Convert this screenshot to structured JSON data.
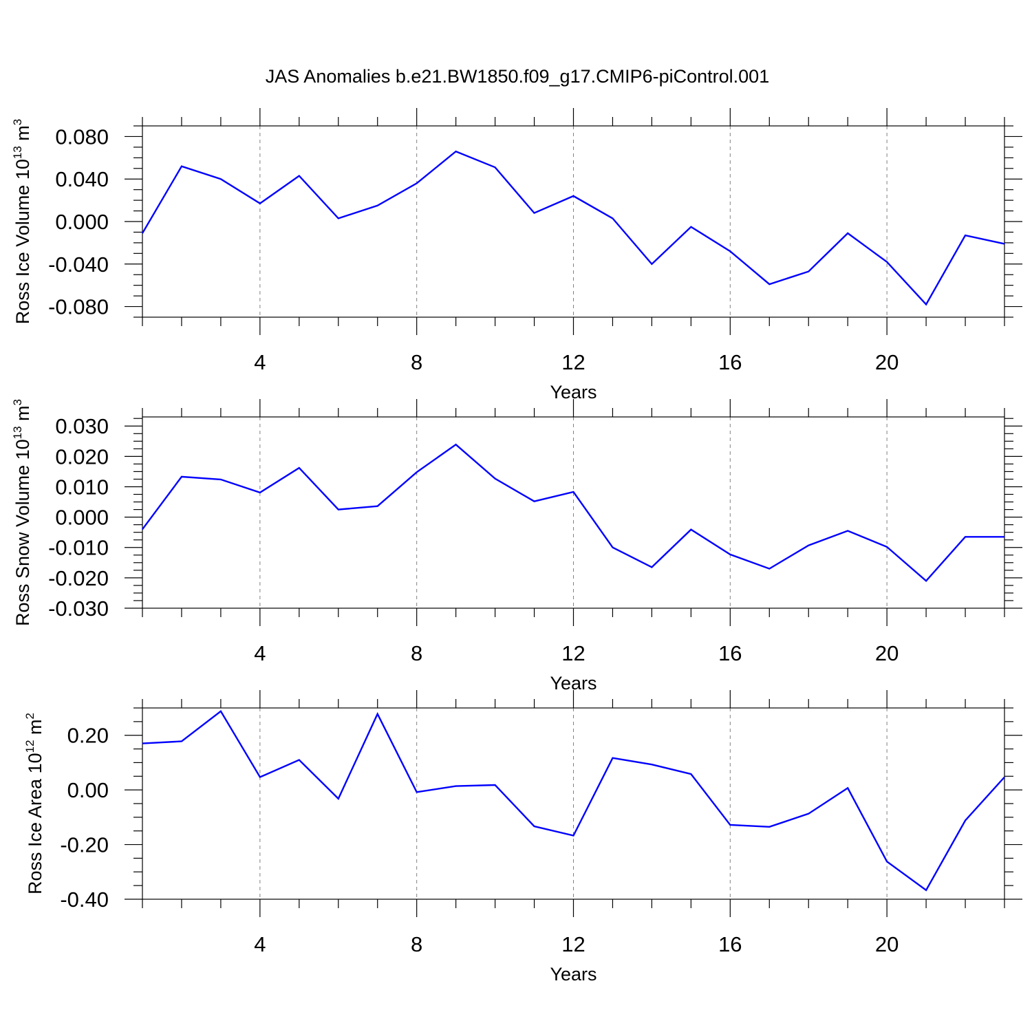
{
  "title": "JAS Anomalies b.e21.BW1850.f09_g17.CMIP6-piControl.001",
  "colors": {
    "line": "#0000ff",
    "axis": "#000000",
    "grid": "#808080",
    "background": "#ffffff"
  },
  "chart_data": [
    {
      "type": "line",
      "xlabel": "Years",
      "ylabel": {
        "text": "Ross Ice Volume 10",
        "exponent": "13",
        "unit": " m",
        "unit_exponent": "3"
      },
      "xlim": [
        1,
        23
      ],
      "ylim": [
        -0.09,
        0.09
      ],
      "x_ticks": [
        4,
        8,
        12,
        16,
        20
      ],
      "x_tick_labels": [
        "4",
        "8",
        "12",
        "16",
        "20"
      ],
      "y_ticks": [
        0.08,
        0.04,
        0.0,
        -0.04,
        -0.08
      ],
      "y_tick_labels": [
        "0.080",
        "0.040",
        "0.000",
        "-0.040",
        "-0.080"
      ],
      "y_minor_step": 0.01,
      "grid": "vertical dashed at major x ticks",
      "series": [
        {
          "name": "Ross Ice Volume",
          "x": [
            1,
            2,
            3,
            4,
            5,
            6,
            7,
            8,
            9,
            10,
            11,
            12,
            13,
            14,
            15,
            16,
            17,
            18,
            19,
            20,
            21,
            22,
            23
          ],
          "values": [
            -0.011,
            0.052,
            0.04,
            0.017,
            0.043,
            0.003,
            0.015,
            0.036,
            0.066,
            0.051,
            0.008,
            0.024,
            0.003,
            -0.04,
            -0.005,
            -0.028,
            -0.059,
            -0.047,
            -0.011,
            -0.038,
            -0.078,
            -0.013,
            -0.021
          ]
        }
      ]
    },
    {
      "type": "line",
      "xlabel": "Years",
      "ylabel": {
        "text": "Ross Snow Volume 10",
        "exponent": "13",
        "unit": " m",
        "unit_exponent": "3"
      },
      "xlim": [
        1,
        23
      ],
      "ylim": [
        -0.03,
        0.033
      ],
      "x_ticks": [
        4,
        8,
        12,
        16,
        20
      ],
      "x_tick_labels": [
        "4",
        "8",
        "12",
        "16",
        "20"
      ],
      "y_ticks": [
        0.03,
        0.02,
        0.01,
        0.0,
        -0.01,
        -0.02,
        -0.03
      ],
      "y_tick_labels": [
        "0.030",
        "0.020",
        "0.010",
        "0.000",
        "-0.010",
        "-0.020",
        "-0.030"
      ],
      "y_minor_step": 0.0025,
      "grid": "vertical dashed at major x ticks",
      "series": [
        {
          "name": "Ross Snow Volume",
          "x": [
            1,
            2,
            3,
            4,
            5,
            6,
            7,
            8,
            9,
            10,
            11,
            12,
            13,
            14,
            15,
            16,
            17,
            18,
            19,
            20,
            21,
            22,
            23
          ],
          "values": [
            -0.004,
            0.0133,
            0.0124,
            0.0081,
            0.0162,
            0.0025,
            0.0036,
            0.0148,
            0.0239,
            0.0127,
            0.0052,
            0.0083,
            -0.01,
            -0.0165,
            -0.0041,
            -0.0123,
            -0.017,
            -0.0093,
            -0.0045,
            -0.0098,
            -0.021,
            -0.0065,
            -0.0065
          ]
        }
      ]
    },
    {
      "type": "line",
      "xlabel": "Years",
      "ylabel": {
        "text": "Ross Ice Area 10",
        "exponent": "12",
        "unit": " m",
        "unit_exponent": "2"
      },
      "xlim": [
        1,
        23
      ],
      "ylim": [
        -0.4,
        0.3
      ],
      "x_ticks": [
        4,
        8,
        12,
        16,
        20
      ],
      "x_tick_labels": [
        "4",
        "8",
        "12",
        "16",
        "20"
      ],
      "y_ticks": [
        0.2,
        0.0,
        -0.2,
        -0.4
      ],
      "y_tick_labels": [
        "0.20",
        "0.00",
        "-0.20",
        "-0.40"
      ],
      "y_minor_step": 0.05,
      "grid": "vertical dashed at major x ticks",
      "series": [
        {
          "name": "Ross Ice Area",
          "x": [
            1,
            2,
            3,
            4,
            5,
            6,
            7,
            8,
            9,
            10,
            11,
            12,
            13,
            14,
            15,
            16,
            17,
            18,
            19,
            20,
            21,
            22,
            23
          ],
          "values": [
            0.17,
            0.178,
            0.288,
            0.047,
            0.11,
            -0.032,
            0.278,
            -0.008,
            0.014,
            0.018,
            -0.133,
            -0.167,
            0.117,
            0.093,
            0.058,
            -0.128,
            -0.135,
            -0.087,
            0.007,
            -0.262,
            -0.367,
            -0.112,
            0.047
          ]
        }
      ]
    }
  ]
}
